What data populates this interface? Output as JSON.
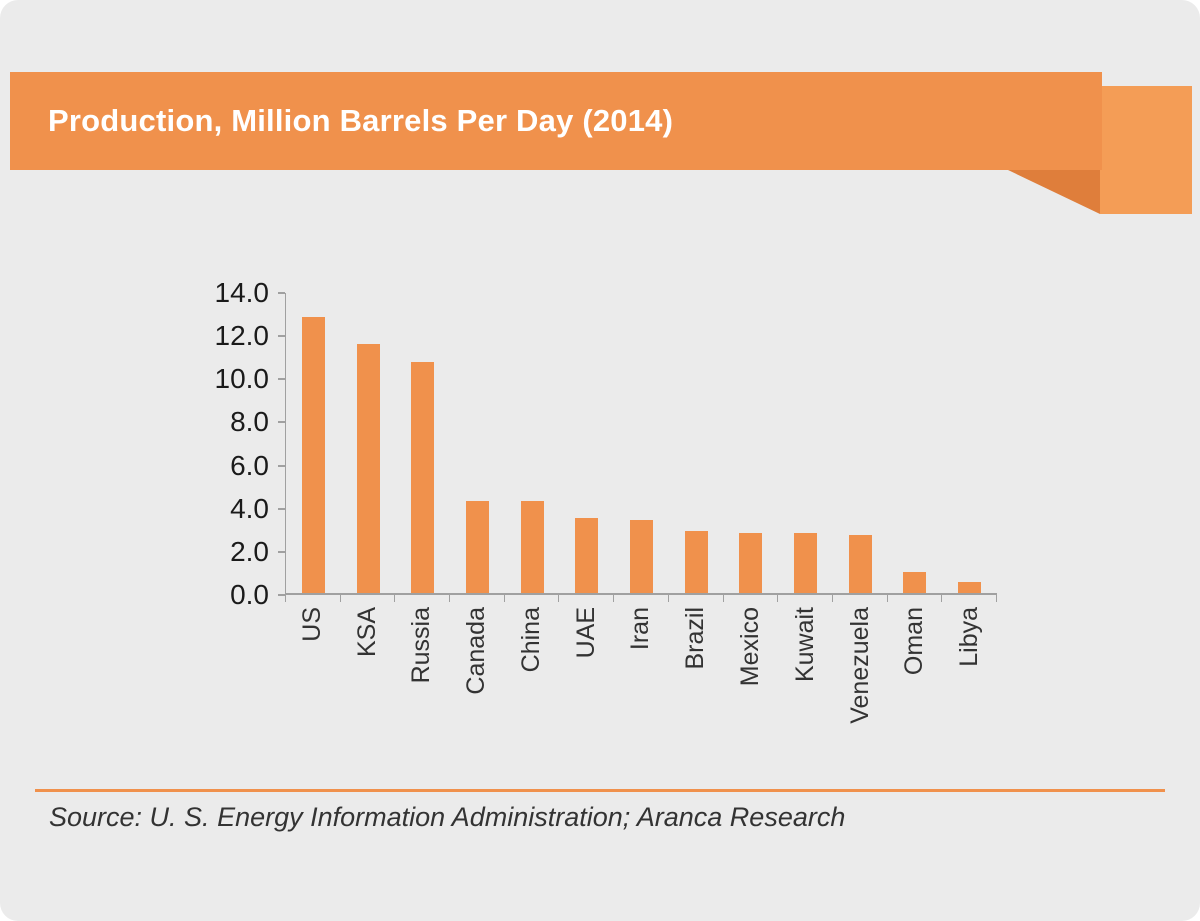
{
  "page": {
    "background": "#EBEBEB",
    "accent": "#F0914C",
    "accent_light": "#F49D56",
    "accent_dark": "#DF7E3B"
  },
  "header": {
    "title": "Production, Million Barrels Per Day (2014)"
  },
  "footer": {
    "source": "Source: U. S. Energy Information Administration; Aranca Research"
  },
  "chart_data": {
    "type": "bar",
    "title": "Production, Million Barrels Per Day (2014)",
    "categories": [
      "US",
      "KSA",
      "Russia",
      "Canada",
      "China",
      "UAE",
      "Iran",
      "Brazil",
      "Mexico",
      "Kuwait",
      "Venezuela",
      "Oman",
      "Libya"
    ],
    "values": [
      12.9,
      11.6,
      10.8,
      4.3,
      4.3,
      3.5,
      3.4,
      2.9,
      2.8,
      2.8,
      2.7,
      1.0,
      0.5
    ],
    "xlabel": "",
    "ylabel": "",
    "ylim": [
      0,
      14
    ],
    "yticks": [
      0,
      2,
      4,
      6,
      8,
      10,
      12,
      14
    ],
    "ytick_labels": [
      "0.0",
      "2.0",
      "4.0",
      "6.0",
      "8.0",
      "10.0",
      "12.0",
      "14.0"
    ],
    "grid": false,
    "legend": "none",
    "bar_color": "#F0914C",
    "source": "Source: U. S. Energy Information Administration; Aranca Research"
  }
}
